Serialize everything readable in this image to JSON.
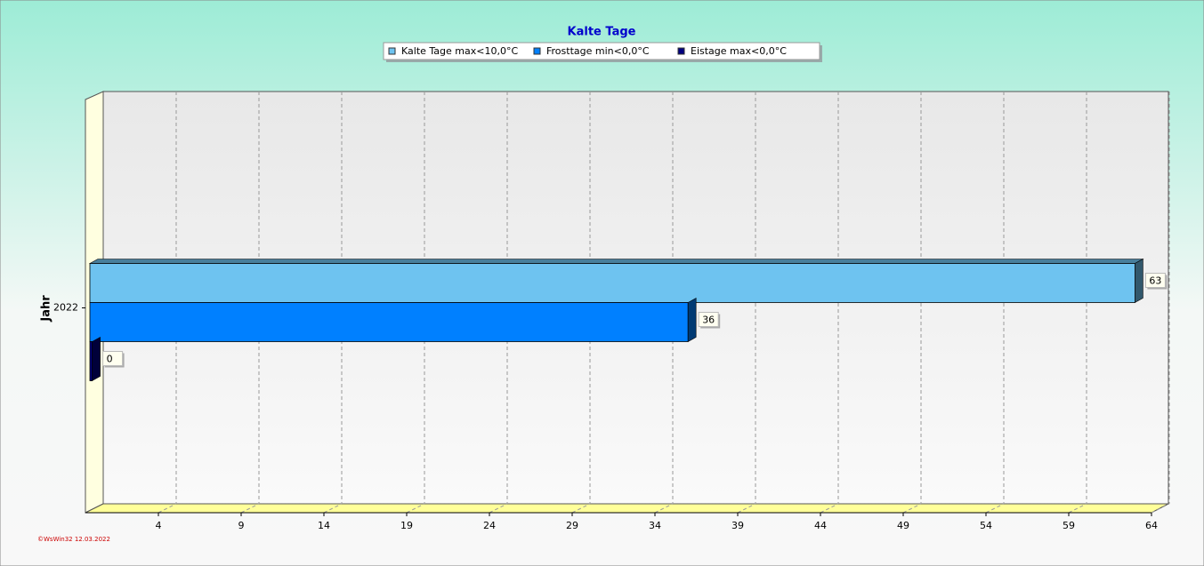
{
  "chart_data": {
    "type": "bar",
    "orientation": "horizontal",
    "title": "Kalte Tage",
    "ylabel": "Jahr",
    "categories": [
      "2022"
    ],
    "series": [
      {
        "name": "Kalte Tage max<10,0°C",
        "color": "#6ec3f0",
        "values": [
          63
        ]
      },
      {
        "name": "Frosttage min<0,0°C",
        "color": "#0080ff",
        "values": [
          36
        ]
      },
      {
        "name": "Eistage max<0,0°C",
        "color": "#000080",
        "values": [
          0
        ]
      }
    ],
    "xlim": [
      0,
      64
    ],
    "xticks": [
      4,
      9,
      14,
      19,
      24,
      29,
      34,
      39,
      44,
      49,
      54,
      59,
      64
    ],
    "grid": true,
    "legend": "top",
    "footer": "©WsWin32  12.03.2022"
  }
}
